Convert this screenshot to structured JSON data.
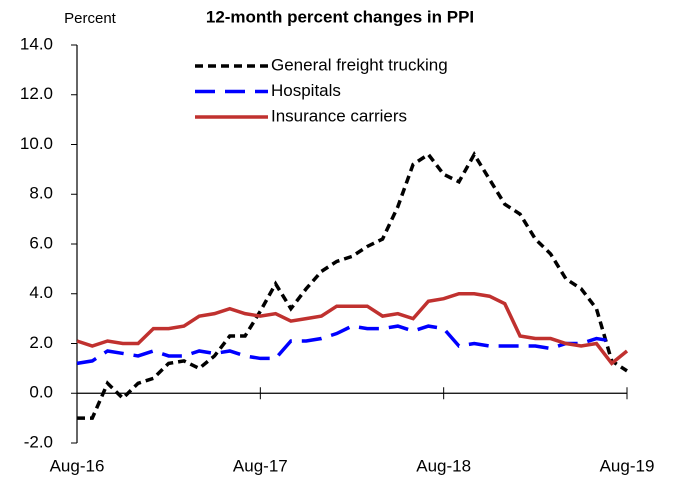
{
  "chart_data": {
    "type": "line",
    "title": "12-month percent changes in PPI",
    "y_label": "Percent",
    "categories": [
      "Aug-16",
      null,
      null,
      null,
      null,
      null,
      null,
      null,
      null,
      null,
      null,
      null,
      "Aug-17",
      null,
      null,
      null,
      null,
      null,
      null,
      null,
      null,
      null,
      null,
      null,
      "Aug-18",
      null,
      null,
      null,
      null,
      null,
      null,
      null,
      null,
      null,
      null,
      null,
      "Aug-19"
    ],
    "series": [
      {
        "name": "General freight trucking",
        "color": "#000000",
        "dash": "dashed",
        "values": [
          -1.0,
          -1.0,
          0.4,
          -0.2,
          0.4,
          0.6,
          1.2,
          1.3,
          1.0,
          1.5,
          2.3,
          2.3,
          3.3,
          4.4,
          3.4,
          4.2,
          4.9,
          5.3,
          5.5,
          5.9,
          6.2,
          7.5,
          9.2,
          9.6,
          8.8,
          8.5,
          9.6,
          8.6,
          7.6,
          7.2,
          6.2,
          5.6,
          4.6,
          4.2,
          3.4,
          1.3,
          0.9
        ]
      },
      {
        "name": "Hospitals",
        "color": "#0000ff",
        "dash": "long-dashed",
        "values": [
          1.2,
          1.3,
          1.7,
          1.6,
          1.5,
          1.7,
          1.5,
          1.5,
          1.7,
          1.6,
          1.7,
          1.5,
          1.4,
          1.4,
          2.1,
          2.1,
          2.2,
          2.4,
          2.7,
          2.6,
          2.6,
          2.7,
          2.5,
          2.7,
          2.6,
          1.9,
          2.0,
          1.9,
          1.9,
          1.9,
          1.9,
          1.8,
          2.0,
          2.0,
          2.2,
          2.1,
          null
        ]
      },
      {
        "name": "Insurance carriers",
        "color": "#c0312f",
        "dash": "solid",
        "values": [
          2.1,
          1.9,
          2.1,
          2.0,
          2.0,
          2.6,
          2.6,
          2.7,
          3.1,
          3.2,
          3.4,
          3.2,
          3.1,
          3.2,
          2.9,
          3.0,
          3.1,
          3.5,
          3.5,
          3.5,
          3.1,
          3.2,
          3.0,
          3.7,
          3.8,
          4.0,
          4.0,
          3.9,
          3.6,
          2.3,
          2.2,
          2.2,
          2.0,
          1.9,
          2.0,
          1.2,
          1.7
        ]
      }
    ],
    "ylim": [
      -2,
      14
    ],
    "yticks": [
      {
        "value": -2,
        "label": "-2.0"
      },
      {
        "value": 0,
        "label": "0.0"
      },
      {
        "value": 2,
        "label": "2.0"
      },
      {
        "value": 4,
        "label": "4.0"
      },
      {
        "value": 6,
        "label": "6.0"
      },
      {
        "value": 8,
        "label": "8.0"
      },
      {
        "value": 10,
        "label": "10.0"
      },
      {
        "value": 12,
        "label": "12.0"
      },
      {
        "value": 14,
        "label": "14.0"
      }
    ],
    "grid": false,
    "legend": "top"
  }
}
